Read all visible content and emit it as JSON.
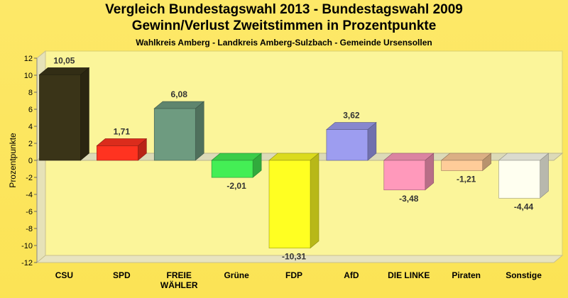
{
  "chart_data": {
    "type": "bar",
    "title": "Vergleich Bundestagswahl 2013 - Bundestagswahl 2009",
    "subtitle": "Gewinn/Verlust Zweitstimmen in Prozentpunkte",
    "caption": "Wahlkreis Amberg - Landkreis Amberg-Sulzbach - Gemeinde Ursensollen",
    "ylabel": "Prozentpunkte",
    "xlabel": "",
    "ylim": [
      -12,
      12
    ],
    "yticks": [
      12,
      10,
      8,
      6,
      4,
      2,
      0,
      -2,
      -4,
      -6,
      -8,
      -10,
      -12
    ],
    "grid": false,
    "categories": [
      "CSU",
      "SPD",
      "FREIE WÄHLER",
      "Grüne",
      "FDP",
      "AfD",
      "DIE LINKE",
      "Piraten",
      "Sonstige"
    ],
    "category_lines": [
      [
        "CSU"
      ],
      [
        "SPD"
      ],
      [
        "FREIE",
        "WÄHLER"
      ],
      [
        "Grüne"
      ],
      [
        "FDP"
      ],
      [
        "AfD"
      ],
      [
        "DIE LINKE"
      ],
      [
        "Piraten"
      ],
      [
        "Sonstige"
      ]
    ],
    "values": [
      10.05,
      1.71,
      6.08,
      -2.01,
      -10.31,
      3.62,
      -3.48,
      -1.21,
      -4.44
    ],
    "value_labels": [
      "10,05",
      "1,71",
      "6,08",
      "-2,01",
      "-10,31",
      "3,62",
      "-3,48",
      "-1,21",
      "-4,44"
    ],
    "colors": [
      "#3a3418",
      "#ff3320",
      "#6e9b80",
      "#44ee55",
      "#ffff22",
      "#9d9df0",
      "#ff99bb",
      "#ffcc99",
      "#fffff0"
    ]
  }
}
